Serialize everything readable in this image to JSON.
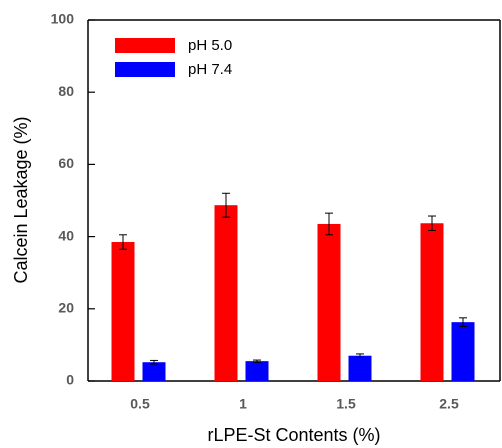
{
  "chart_data": {
    "type": "bar",
    "x_label": "rLPE-St Contents (%)",
    "y_label": "Calcein Leakage (%)",
    "categories": [
      "0.5",
      "1",
      "1.5",
      "2.5"
    ],
    "series": [
      {
        "name": "pH 5.0",
        "color": "#ff0000",
        "values": [
          38.5,
          48.7,
          43.5,
          43.7
        ],
        "errors": [
          2.0,
          3.3,
          3.0,
          2.0
        ]
      },
      {
        "name": "pH 7.4",
        "color": "#0000ff",
        "values": [
          5.2,
          5.5,
          7.0,
          16.3
        ],
        "errors": [
          0.5,
          0.3,
          0.5,
          1.2
        ]
      }
    ],
    "ylim": [
      0,
      100
    ],
    "yticks": [
      0,
      20,
      40,
      60,
      80,
      100
    ],
    "legend": "top-left",
    "grid": false
  }
}
